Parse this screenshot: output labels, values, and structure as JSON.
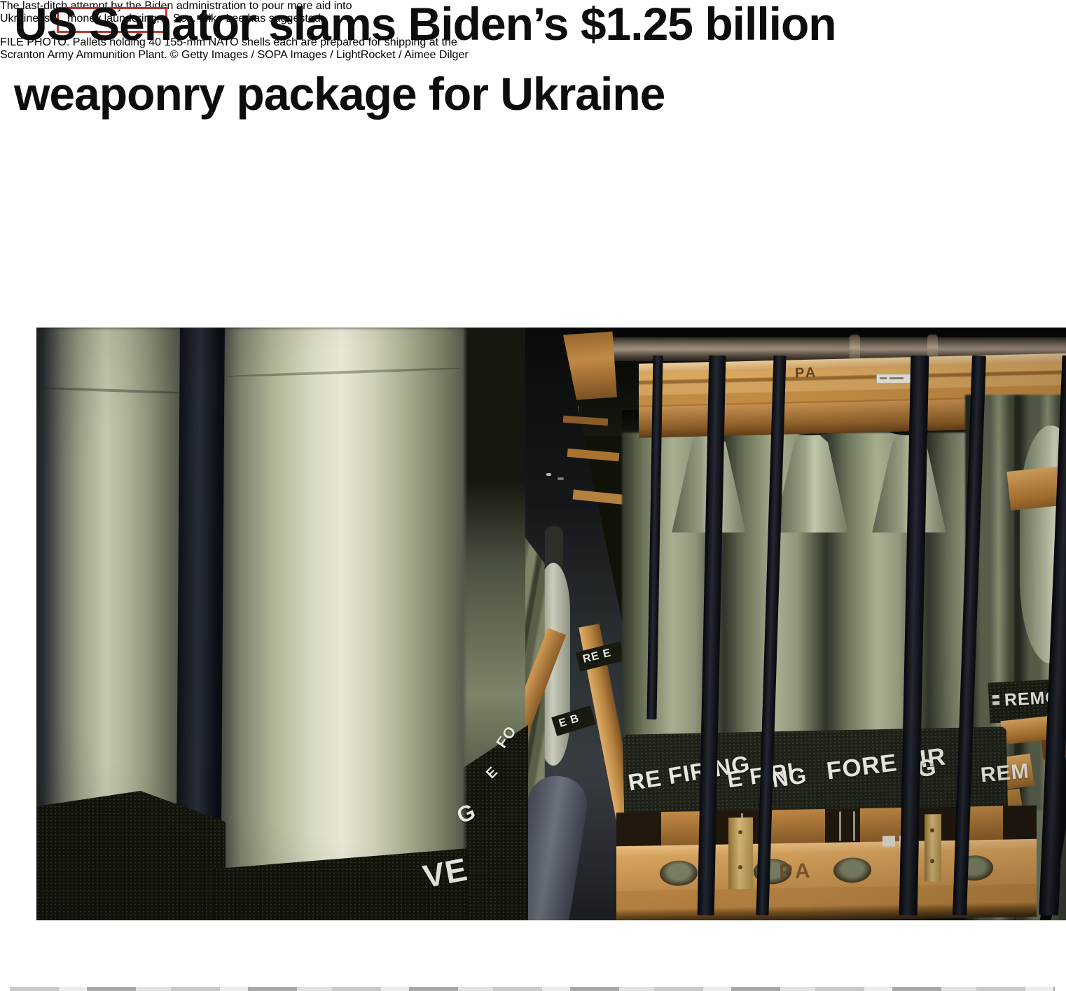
{
  "colors": {
    "background": "#ffffff",
    "headline_text": "#0d0d0d",
    "subhead_text": "#6e6e6e",
    "caption_text": "#8f8f8f",
    "highlight_box_border": "#b23a32"
  },
  "article": {
    "headline_line1": "US Senator slams Biden’s $1.25 billion",
    "headline_line2": "weaponry package for Ukraine",
    "subhead_line1": "The last-ditch attempt by the Biden administration to pour more aid into",
    "subhead_line2_before": "Ukraine is",
    "subhead_highlight": "money laundering,",
    "subhead_line2_after": "Sen. Mike Lee has suggested",
    "caption_line1": "FILE PHOTO. Pallets holding 40 155-mm NATO shells each are prepared for shipping at the",
    "caption_line2": "Scranton Army Ammunition Plant. ©  Getty Images / SOPA Images / LightRocket / Aimee Dilger"
  },
  "photo": {
    "stamp_top": "PA",
    "stamp_bottom": "PA",
    "bands": {
      "band1": "RE FIRING",
      "band2a": "E FIRI",
      "band2b": "NG",
      "band3a": "FORE FIR",
      "band3b": "G",
      "rem": "REM",
      "remove1": "REMOV",
      "remove2": "EM"
    },
    "letters": {
      "ree": "RE E",
      "eb": "E B",
      "fo": "FO",
      "e": "E",
      "g": "G",
      "ve": "VE"
    }
  }
}
